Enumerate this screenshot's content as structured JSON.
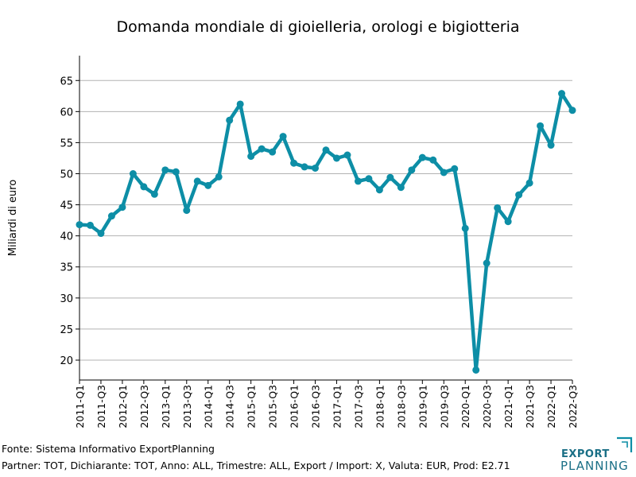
{
  "chart_data": {
    "type": "line",
    "title": "Domanda mondiale di gioielleria, orologi e bigiotteria",
    "xlabel": "",
    "ylabel": "Miliardi di euro",
    "ylim": [
      16.8,
      69
    ],
    "yticks": [
      20,
      25,
      30,
      35,
      40,
      45,
      50,
      55,
      60,
      65
    ],
    "grid": "horizontal",
    "legend": "none",
    "categories": [
      "2011-Q1",
      "2011-Q2",
      "2011-Q3",
      "2011-Q4",
      "2012-Q1",
      "2012-Q2",
      "2012-Q3",
      "2012-Q4",
      "2013-Q1",
      "2013-Q2",
      "2013-Q3",
      "2013-Q4",
      "2014-Q1",
      "2014-Q2",
      "2014-Q3",
      "2014-Q4",
      "2015-Q1",
      "2015-Q2",
      "2015-Q3",
      "2015-Q4",
      "2016-Q1",
      "2016-Q2",
      "2016-Q3",
      "2016-Q4",
      "2017-Q1",
      "2017-Q2",
      "2017-Q3",
      "2017-Q4",
      "2018-Q1",
      "2018-Q2",
      "2018-Q3",
      "2018-Q4",
      "2019-Q1",
      "2019-Q2",
      "2019-Q3",
      "2019-Q4",
      "2020-Q1",
      "2020-Q2",
      "2020-Q3",
      "2020-Q4",
      "2021-Q1",
      "2021-Q2",
      "2021-Q3",
      "2021-Q4",
      "2022-Q1",
      "2022-Q2",
      "2022-Q3"
    ],
    "tick_labels": [
      "2011-Q1",
      "2011-Q3",
      "2012-Q1",
      "2012-Q3",
      "2013-Q1",
      "2013-Q3",
      "2014-Q1",
      "2014-Q3",
      "2015-Q1",
      "2015-Q3",
      "2016-Q1",
      "2016-Q3",
      "2017-Q1",
      "2017-Q3",
      "2018-Q1",
      "2018-Q3",
      "2019-Q1",
      "2019-Q3",
      "2020-Q1",
      "2020-Q3",
      "2021-Q1",
      "2021-Q3",
      "2022-Q1",
      "2022-Q3"
    ],
    "series": [
      {
        "color": "#0d8ea6",
        "values": [
          41.8,
          41.7,
          40.4,
          43.2,
          44.6,
          50.0,
          47.9,
          46.7,
          50.6,
          50.3,
          44.1,
          48.8,
          48.1,
          49.5,
          58.6,
          61.2,
          52.8,
          54.0,
          53.5,
          56.0,
          51.7,
          51.1,
          50.9,
          53.8,
          52.5,
          53.0,
          48.8,
          49.2,
          47.4,
          49.4,
          47.8,
          50.6,
          52.6,
          52.2,
          50.2,
          50.8,
          41.2,
          18.4,
          35.6,
          44.5,
          42.3,
          46.6,
          48.5,
          57.7,
          54.6,
          62.9,
          60.2
        ]
      }
    ]
  },
  "footer": {
    "source": "Fonte: Sistema Informativo ExportPlanning",
    "details": "Partner: TOT, Dichiarante: TOT, Anno: ALL, Trimestre: ALL, Export / Import: X, Valuta: EUR, Prod: E2.71"
  },
  "logo": {
    "line1": "EXPORT",
    "line2": "PLANNING",
    "color": "#0d8ea6",
    "text_color": "#1a6f86"
  }
}
